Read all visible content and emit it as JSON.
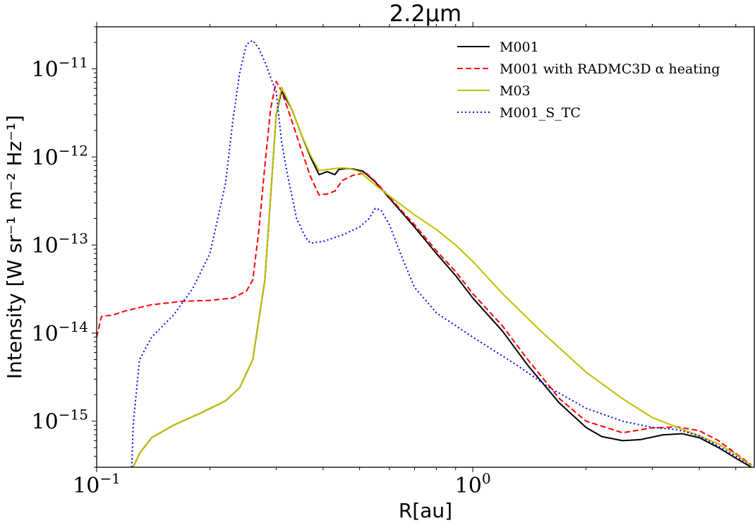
{
  "chart_data": {
    "type": "line",
    "title": "2.2µm",
    "xlabel": "R[au]",
    "ylabel": "Intensity [W sr⁻¹ m⁻² Hz⁻¹]",
    "x_scale": "log",
    "y_scale": "log",
    "xlim": [
      0.1,
      5.6
    ],
    "ylim": [
      3e-16,
      3e-11
    ],
    "x_ticks": [
      {
        "value": 0.1,
        "base": "10",
        "exp": "−1"
      },
      {
        "value": 1,
        "base": "10",
        "exp": "0"
      }
    ],
    "y_ticks": [
      {
        "value": 1e-15,
        "base": "10",
        "exp": "−15"
      },
      {
        "value": 1e-14,
        "base": "10",
        "exp": "−14"
      },
      {
        "value": 1e-13,
        "base": "10",
        "exp": "−13"
      },
      {
        "value": 1e-12,
        "base": "10",
        "exp": "−12"
      },
      {
        "value": 1e-11,
        "base": "10",
        "exp": "−11"
      }
    ],
    "grid": false,
    "legend_position": "top-right",
    "series": [
      {
        "name": "M001",
        "color": "#000000",
        "dash": "solid",
        "x": [
          0.125,
          0.13,
          0.14,
          0.16,
          0.19,
          0.22,
          0.24,
          0.26,
          0.28,
          0.29,
          0.3,
          0.31,
          0.33,
          0.35,
          0.37,
          0.39,
          0.41,
          0.43,
          0.44,
          0.46,
          0.48,
          0.51,
          0.55,
          0.6,
          0.65,
          0.7,
          0.8,
          0.9,
          1.0,
          1.2,
          1.4,
          1.7,
          2.0,
          2.2,
          2.5,
          2.8,
          3.2,
          3.6,
          4.0,
          4.5,
          5.0,
          5.5
        ],
        "y": [
          3e-16,
          4.3e-16,
          6.5e-16,
          9e-16,
          1.25e-15,
          1.7e-15,
          2.4e-15,
          5e-15,
          4e-14,
          3.5e-13,
          3e-12,
          5.6e-12,
          3.5e-12,
          1.8e-12,
          1e-12,
          6.3e-13,
          6.8e-13,
          6.3e-13,
          7.2e-13,
          7.4e-13,
          7.3e-13,
          6.9e-13,
          5.2e-13,
          3.4e-13,
          2.3e-13,
          1.6e-13,
          8e-14,
          4.5e-14,
          2.5e-14,
          1.05e-14,
          4.3e-15,
          1.6e-15,
          8.5e-16,
          6.7e-16,
          6e-16,
          6.2e-16,
          7e-16,
          7.2e-16,
          6.5e-16,
          5e-16,
          3.8e-16,
          3e-16
        ]
      },
      {
        "name": "M001 with RADMC3D α heating",
        "color": "#ff0000",
        "dash": "dashed",
        "x": [
          0.1,
          0.103,
          0.11,
          0.12,
          0.14,
          0.17,
          0.2,
          0.23,
          0.25,
          0.26,
          0.27,
          0.28,
          0.29,
          0.3,
          0.31,
          0.33,
          0.35,
          0.37,
          0.39,
          0.41,
          0.43,
          0.45,
          0.48,
          0.52,
          0.55,
          0.6,
          0.65,
          0.7,
          0.8,
          0.9,
          1.0,
          1.2,
          1.4,
          1.7,
          2.0,
          2.5,
          3.0,
          3.5,
          4.0,
          4.5,
          5.0,
          5.5
        ],
        "y": [
          9e-15,
          1.55e-14,
          1.6e-14,
          1.8e-14,
          2.1e-14,
          2.3e-14,
          2.35e-14,
          2.5e-14,
          3e-14,
          4e-14,
          1.5e-13,
          8e-13,
          3.5e-12,
          7.2e-12,
          5.6e-12,
          2.6e-12,
          1.2e-12,
          6e-13,
          3.7e-13,
          3.8e-13,
          4.1e-13,
          5.4e-13,
          6.2e-13,
          6.6e-13,
          5.3e-13,
          3.5e-13,
          2.4e-13,
          1.7e-13,
          8.6e-14,
          5e-14,
          2.8e-14,
          1.2e-14,
          5e-15,
          1.8e-15,
          1e-15,
          7.4e-16,
          8.4e-16,
          8.6e-16,
          7.8e-16,
          6e-16,
          4.3e-16,
          3.2e-16
        ]
      },
      {
        "name": "M03",
        "color": "#bfbf00",
        "dash": "solid",
        "x": [
          0.125,
          0.13,
          0.14,
          0.16,
          0.19,
          0.22,
          0.24,
          0.26,
          0.28,
          0.29,
          0.3,
          0.31,
          0.33,
          0.35,
          0.37,
          0.39,
          0.41,
          0.43,
          0.45,
          0.47,
          0.5,
          0.55,
          0.6,
          0.7,
          0.8,
          0.9,
          1.0,
          1.2,
          1.5,
          2.0,
          2.5,
          3.0,
          3.5,
          4.0,
          4.5,
          5.0,
          5.5
        ],
        "y": [
          3e-16,
          4.3e-16,
          6.5e-16,
          9e-16,
          1.25e-15,
          1.7e-15,
          2.4e-15,
          5e-15,
          4e-14,
          3.5e-13,
          3e-12,
          6.2e-12,
          3.5e-12,
          1.8e-12,
          1.05e-12,
          7e-13,
          7.2e-13,
          7.4e-13,
          7.5e-13,
          7.4e-13,
          6.8e-13,
          4.8e-13,
          3.6e-13,
          2.2e-13,
          1.5e-13,
          1e-13,
          6.5e-14,
          2.8e-14,
          1.1e-14,
          3.6e-15,
          1.8e-15,
          1.1e-15,
          8.5e-16,
          6.8e-16,
          5.5e-16,
          4.2e-16,
          3.1e-16
        ]
      },
      {
        "name": "M001_S_TC",
        "color": "#0000ff",
        "dash": "dotted",
        "x": [
          0.124,
          0.125,
          0.13,
          0.14,
          0.16,
          0.18,
          0.2,
          0.22,
          0.23,
          0.24,
          0.25,
          0.26,
          0.27,
          0.28,
          0.29,
          0.3,
          0.31,
          0.32,
          0.34,
          0.36,
          0.37,
          0.4,
          0.45,
          0.5,
          0.53,
          0.55,
          0.57,
          0.6,
          0.65,
          0.7,
          0.8,
          1.0,
          1.3,
          1.6,
          2.0,
          2.5,
          3.0,
          3.5,
          4.0,
          4.5,
          5.0,
          5.5
        ],
        "y": [
          3e-16,
          9e-16,
          5e-15,
          9e-15,
          1.6e-14,
          3.2e-14,
          8e-14,
          5e-13,
          2.5e-12,
          9e-12,
          1.9e-11,
          2.1e-11,
          1.7e-11,
          1.2e-11,
          8e-12,
          5.5e-12,
          1.5e-12,
          7e-13,
          2e-13,
          1.2e-13,
          1.05e-13,
          1.1e-13,
          1.3e-13,
          1.6e-13,
          2e-13,
          2.6e-13,
          2.5e-13,
          1.7e-13,
          7e-14,
          3.3e-14,
          1.7e-14,
          9e-15,
          4.4e-15,
          2.4e-15,
          1.4e-15,
          1e-15,
          8.5e-16,
          8e-16,
          6.8e-16,
          5.2e-16,
          4e-16,
          3e-16
        ]
      }
    ]
  }
}
